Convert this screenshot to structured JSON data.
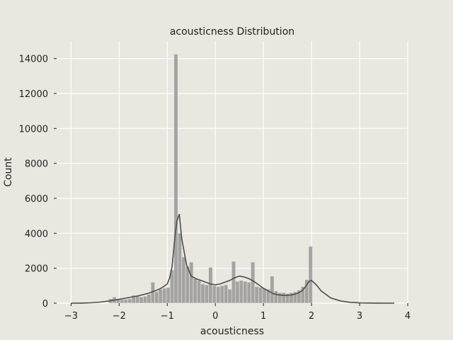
{
  "chart_data": {
    "type": "bar",
    "title": "acousticness Distribution",
    "xlabel": "acousticness",
    "ylabel": "Count",
    "xlim": [
      -3.3,
      4.0
    ],
    "ylim": [
      0,
      15000
    ],
    "x_ticks": [
      -3,
      -2,
      -1,
      0,
      1,
      2,
      3,
      4
    ],
    "x_tick_labels": [
      "−3",
      "−2",
      "−1",
      "0",
      "1",
      "2",
      "3",
      "4"
    ],
    "y_ticks": [
      0,
      2000,
      4000,
      6000,
      8000,
      10000,
      12000,
      14000
    ],
    "y_tick_labels": [
      "0",
      "2000",
      "4000",
      "6000",
      "8000",
      "10000",
      "12000",
      "14000"
    ],
    "grid": true,
    "bar_color": "#8c8c8c",
    "kde_color": "#4d4d4d",
    "background": "#eae6e0",
    "bins": [
      {
        "x0": -2.22,
        "x1": -2.14,
        "count": 250
      },
      {
        "x0": -2.14,
        "x1": -2.06,
        "count": 350
      },
      {
        "x0": -2.06,
        "x1": -1.98,
        "count": 200
      },
      {
        "x0": -1.98,
        "x1": -1.9,
        "count": 200
      },
      {
        "x0": -1.9,
        "x1": -1.82,
        "count": 220
      },
      {
        "x0": -1.82,
        "x1": -1.74,
        "count": 250
      },
      {
        "x0": -1.74,
        "x1": -1.66,
        "count": 450
      },
      {
        "x0": -1.66,
        "x1": -1.58,
        "count": 400
      },
      {
        "x0": -1.58,
        "x1": -1.5,
        "count": 350
      },
      {
        "x0": -1.5,
        "x1": -1.42,
        "count": 400
      },
      {
        "x0": -1.42,
        "x1": -1.34,
        "count": 500
      },
      {
        "x0": -1.34,
        "x1": -1.26,
        "count": 1200
      },
      {
        "x0": -1.26,
        "x1": -1.18,
        "count": 650
      },
      {
        "x0": -1.18,
        "x1": -1.1,
        "count": 800
      },
      {
        "x0": -1.1,
        "x1": -1.02,
        "count": 850
      },
      {
        "x0": -1.02,
        "x1": -0.94,
        "count": 900
      },
      {
        "x0": -0.94,
        "x1": -0.86,
        "count": 1900
      },
      {
        "x0": -0.86,
        "x1": -0.78,
        "count": 14250
      },
      {
        "x0": -0.78,
        "x1": -0.7,
        "count": 4000
      },
      {
        "x0": -0.7,
        "x1": -0.62,
        "count": 2650
      },
      {
        "x0": -0.62,
        "x1": -0.54,
        "count": 2100
      },
      {
        "x0": -0.54,
        "x1": -0.46,
        "count": 2350
      },
      {
        "x0": -0.46,
        "x1": -0.38,
        "count": 1400
      },
      {
        "x0": -0.38,
        "x1": -0.3,
        "count": 1300
      },
      {
        "x0": -0.3,
        "x1": -0.22,
        "count": 1100
      },
      {
        "x0": -0.22,
        "x1": -0.14,
        "count": 1050
      },
      {
        "x0": -0.14,
        "x1": -0.06,
        "count": 2050
      },
      {
        "x0": -0.06,
        "x1": 0.02,
        "count": 1000
      },
      {
        "x0": 0.02,
        "x1": 0.1,
        "count": 950
      },
      {
        "x0": 0.1,
        "x1": 0.18,
        "count": 1000
      },
      {
        "x0": 0.18,
        "x1": 0.26,
        "count": 1050
      },
      {
        "x0": 0.26,
        "x1": 0.34,
        "count": 800
      },
      {
        "x0": 0.34,
        "x1": 0.42,
        "count": 2400
      },
      {
        "x0": 0.42,
        "x1": 0.5,
        "count": 1250
      },
      {
        "x0": 0.5,
        "x1": 0.58,
        "count": 1300
      },
      {
        "x0": 0.58,
        "x1": 0.66,
        "count": 1250
      },
      {
        "x0": 0.66,
        "x1": 0.74,
        "count": 1200
      },
      {
        "x0": 0.74,
        "x1": 0.82,
        "count": 2350
      },
      {
        "x0": 0.82,
        "x1": 0.9,
        "count": 950
      },
      {
        "x0": 0.9,
        "x1": 0.98,
        "count": 900
      },
      {
        "x0": 0.98,
        "x1": 1.06,
        "count": 850
      },
      {
        "x0": 1.06,
        "x1": 1.14,
        "count": 800
      },
      {
        "x0": 1.14,
        "x1": 1.22,
        "count": 1550
      },
      {
        "x0": 1.22,
        "x1": 1.3,
        "count": 700
      },
      {
        "x0": 1.3,
        "x1": 1.38,
        "count": 600
      },
      {
        "x0": 1.38,
        "x1": 1.46,
        "count": 600
      },
      {
        "x0": 1.46,
        "x1": 1.54,
        "count": 550
      },
      {
        "x0": 1.54,
        "x1": 1.62,
        "count": 600
      },
      {
        "x0": 1.62,
        "x1": 1.7,
        "count": 650
      },
      {
        "x0": 1.7,
        "x1": 1.78,
        "count": 750
      },
      {
        "x0": 1.78,
        "x1": 1.86,
        "count": 950
      },
      {
        "x0": 1.86,
        "x1": 1.94,
        "count": 1350
      },
      {
        "x0": 1.94,
        "x1": 2.02,
        "count": 3250
      }
    ],
    "kde": {
      "x": [
        -3.0,
        -2.8,
        -2.6,
        -2.4,
        -2.2,
        -2.0,
        -1.8,
        -1.6,
        -1.4,
        -1.2,
        -1.1,
        -1.0,
        -0.95,
        -0.9,
        -0.87,
        -0.84,
        -0.8,
        -0.75,
        -0.7,
        -0.6,
        -0.5,
        -0.4,
        -0.3,
        -0.2,
        -0.1,
        0.0,
        0.1,
        0.2,
        0.3,
        0.4,
        0.5,
        0.6,
        0.7,
        0.8,
        0.9,
        1.0,
        1.1,
        1.2,
        1.3,
        1.4,
        1.5,
        1.6,
        1.7,
        1.8,
        1.85,
        1.9,
        1.95,
        2.0,
        2.1,
        2.2,
        2.4,
        2.6,
        2.8,
        3.0,
        3.3,
        3.6,
        3.72
      ],
      "y": [
        0,
        5,
        20,
        60,
        130,
        220,
        320,
        420,
        560,
        760,
        900,
        1100,
        1450,
        2100,
        2900,
        3800,
        4700,
        5100,
        3700,
        2200,
        1550,
        1400,
        1300,
        1200,
        1100,
        1050,
        1100,
        1200,
        1300,
        1450,
        1550,
        1500,
        1400,
        1250,
        1050,
        850,
        700,
        550,
        480,
        450,
        450,
        480,
        550,
        700,
        850,
        1050,
        1250,
        1300,
        1050,
        700,
        300,
        130,
        50,
        15,
        5,
        0,
        0
      ]
    }
  }
}
